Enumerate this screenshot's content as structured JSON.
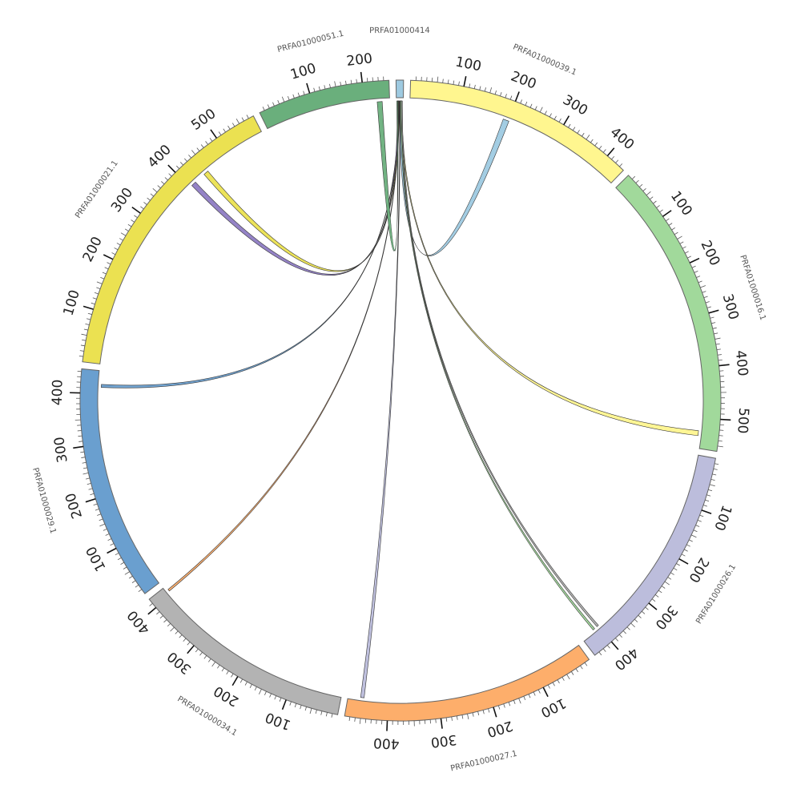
{
  "chart_data": {
    "type": "chord",
    "segments": [
      {
        "name": "PRFA01000414",
        "length": 14,
        "color": "#9ecae1",
        "ticks": []
      },
      {
        "name": "PRFA01000039.1",
        "length": 440,
        "color": "#fff68f",
        "ticks": [
          "100",
          "200",
          "300",
          "400"
        ]
      },
      {
        "name": "PRFA01000016.1",
        "length": 560,
        "color": "#a1d99b",
        "ticks": [
          "100",
          "200",
          "300",
          "400",
          "500"
        ]
      },
      {
        "name": "PRFA01000026.1",
        "length": 440,
        "color": "#bcbddc",
        "ticks": [
          "100",
          "200",
          "300",
          "400"
        ]
      },
      {
        "name": "PRFA01000027.1",
        "length": 480,
        "color": "#fdae6b",
        "ticks": [
          "100",
          "200",
          "300",
          "400"
        ]
      },
      {
        "name": "PRFA01000034.1",
        "length": 420,
        "color": "#b3b3b3",
        "ticks": [
          "100",
          "200",
          "300",
          "400"
        ]
      },
      {
        "name": "PRFA01000029.1",
        "length": 445,
        "color": "#6a9fcf",
        "ticks": [
          "100",
          "200",
          "300",
          "400"
        ]
      },
      {
        "name": "PRFA01000021.1",
        "length": 580,
        "color": "#ebe151",
        "ticks": [
          "100",
          "200",
          "300",
          "400",
          "500"
        ]
      },
      {
        "name": "PRFA01000051.1",
        "length": 250,
        "color": "#6aaf7c",
        "ticks": [
          "100",
          "200"
        ]
      }
    ],
    "links": [
      {
        "from": "PRFA01000414",
        "from_pos": [
          6,
          10
        ],
        "to": "PRFA01000039.1",
        "to_pos": [
          190,
          202
        ],
        "color": "#9ecae1"
      },
      {
        "from": "PRFA01000414",
        "from_pos": [
          9,
          11
        ],
        "to": "PRFA01000016.1",
        "to_pos": [
          525,
          535
        ],
        "color": "#fff68f"
      },
      {
        "from": "PRFA01000414",
        "from_pos": [
          10,
          12
        ],
        "to": "PRFA01000026.1",
        "to_pos": [
          398,
          402
        ],
        "color": "#b3b3b3"
      },
      {
        "from": "PRFA01000414",
        "from_pos": [
          8,
          10
        ],
        "to": "PRFA01000026.1",
        "to_pos": [
          408,
          412
        ],
        "color": "#a1d99b"
      },
      {
        "from": "PRFA01000414",
        "from_pos": [
          7,
          8
        ],
        "to": "PRFA01000027.1",
        "to_pos": [
          448,
          455
        ],
        "color": "#bcbddc"
      },
      {
        "from": "PRFA01000414",
        "from_pos": [
          5,
          6
        ],
        "to": "PRFA01000034.1",
        "to_pos": [
          408,
          412
        ],
        "color": "#fdae6b"
      },
      {
        "from": "PRFA01000414",
        "from_pos": [
          4,
          5
        ],
        "to": "PRFA01000029.1",
        "to_pos": [
          412,
          418
        ],
        "color": "#6a9fcf"
      },
      {
        "from": "PRFA01000414",
        "from_pos": [
          3,
          5
        ],
        "to": "PRFA01000021.1",
        "to_pos": [
          438,
          448
        ],
        "color": "#ebe151"
      },
      {
        "from": "PRFA01000414",
        "from_pos": [
          2,
          4
        ],
        "to": "PRFA01000021.1",
        "to_pos": [
          405,
          415
        ],
        "color": "#8e7cc3"
      },
      {
        "from": "PRFA01000414",
        "from_pos": [
          1,
          3
        ],
        "to": "PRFA01000051.1",
        "to_pos": [
          225,
          235
        ],
        "color": "#6aaf7c"
      }
    ],
    "grid": false,
    "legend": "none",
    "title": ""
  }
}
